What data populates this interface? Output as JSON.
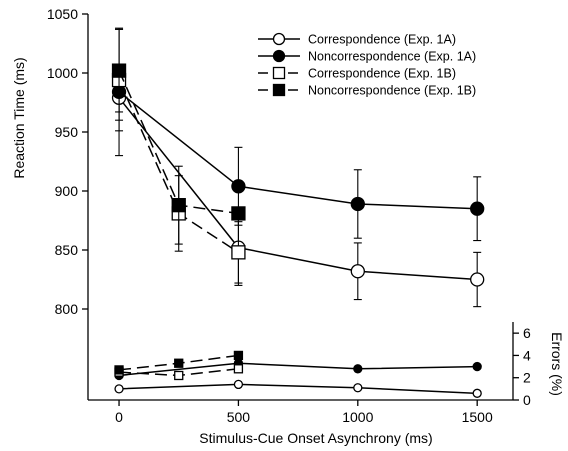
{
  "chart_data": {
    "type": "line",
    "xlabel": "Stimulus-Cue Onset Asynchrony (ms)",
    "ylabel": "Reaction Time (ms)",
    "ylabel_right": "Errors (%)",
    "x_ticks": [
      0,
      500,
      1000,
      1500
    ],
    "y_ticks": [
      800,
      850,
      900,
      950,
      1000,
      1050
    ],
    "y_right_ticks": [
      0,
      2,
      4,
      6
    ],
    "xlim": [
      -130,
      1650
    ],
    "ylim": [
      800,
      1050
    ],
    "ylim_errors": [
      0,
      7
    ],
    "legend_position": "top-right",
    "grid": false,
    "series": [
      {
        "name": "Correspondence (Exp. 1A)",
        "marker": "circle-open",
        "dash": "solid",
        "x": [
          0,
          500,
          1000,
          1500
        ],
        "rt": [
          979,
          852,
          832,
          825
        ],
        "rt_err": [
          19,
          32,
          24,
          23
        ],
        "errors": [
          1.0,
          1.4,
          1.1,
          0.6
        ]
      },
      {
        "name": "Noncorrespondence (Exp. 1A)",
        "marker": "circle-filled",
        "dash": "solid",
        "x": [
          0,
          500,
          1000,
          1500
        ],
        "rt": [
          984,
          904,
          889,
          885
        ],
        "rt_err": [
          54,
          33,
          29,
          27
        ],
        "errors": [
          2.2,
          3.3,
          2.8,
          3.0
        ]
      },
      {
        "name": "Correspondence (Exp. 1B)",
        "marker": "square-open",
        "dash": "dashed",
        "x": [
          0,
          250,
          500
        ],
        "rt": [
          994,
          881,
          848
        ],
        "rt_err": [
          43,
          32,
          26
        ],
        "errors": [
          2.5,
          2.2,
          2.8
        ]
      },
      {
        "name": "Noncorrespondence (Exp. 1B)",
        "marker": "square-filled",
        "dash": "dashed",
        "x": [
          0,
          250,
          500
        ],
        "rt": [
          1002,
          888,
          881
        ],
        "rt_err": [
          35,
          33,
          0
        ],
        "errors": [
          2.7,
          3.3,
          4.0
        ]
      }
    ]
  }
}
